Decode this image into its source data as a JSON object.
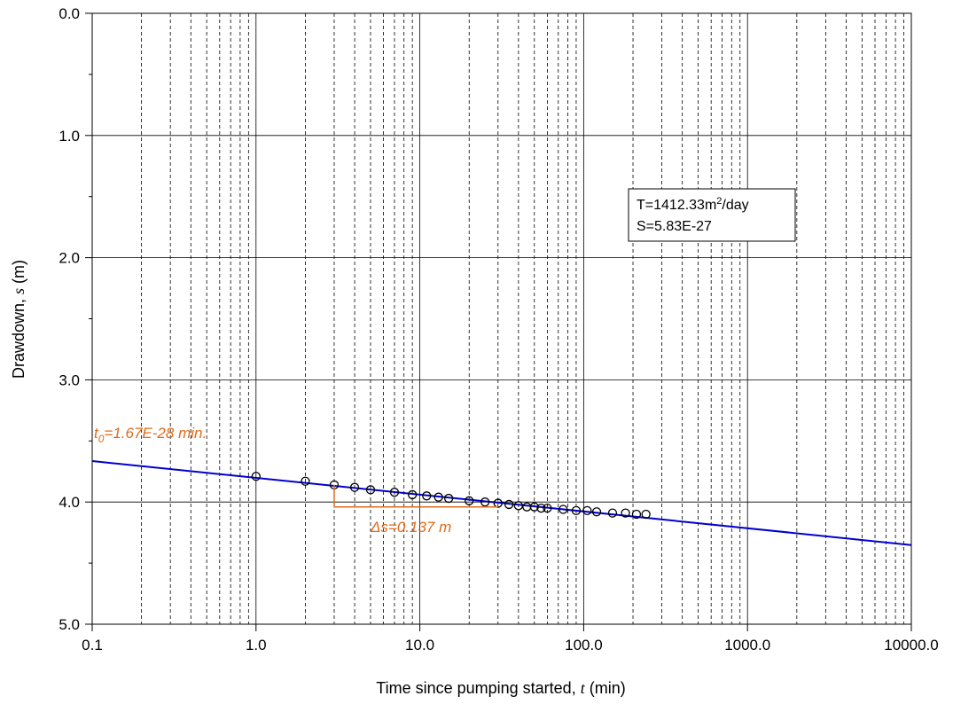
{
  "chart_data": {
    "type": "scatter",
    "xscale": "log",
    "xlim": [
      0.1,
      10000
    ],
    "ylim": [
      5.0,
      0.0
    ],
    "y_inverted": true,
    "grid": true,
    "xlabel": {
      "prefix": "Time since pumping started, ",
      "var": "t",
      "suffix": " (min)"
    },
    "ylabel": {
      "prefix": "Drawdown, ",
      "var": "s",
      "suffix": " (m)"
    },
    "x_ticks": [
      {
        "value": 0.1,
        "label": "0.1"
      },
      {
        "value": 1,
        "label": "1.0"
      },
      {
        "value": 10,
        "label": "10.0"
      },
      {
        "value": 100,
        "label": "100.0"
      },
      {
        "value": 1000,
        "label": "1000.0"
      },
      {
        "value": 10000,
        "label": "10000.0"
      }
    ],
    "y_ticks": [
      {
        "value": 0,
        "label": "0.0"
      },
      {
        "value": 1,
        "label": "1.0"
      },
      {
        "value": 2,
        "label": "2.0"
      },
      {
        "value": 3,
        "label": "3.0"
      },
      {
        "value": 4,
        "label": "4.0"
      },
      {
        "value": 5,
        "label": "5.0"
      }
    ],
    "y_minor_step": 0.5,
    "series": [
      {
        "kind": "points",
        "color": "#000000",
        "x": [
          1,
          2,
          3,
          4,
          5,
          7,
          9,
          11,
          13,
          15,
          20,
          25,
          30,
          35,
          40,
          45,
          50,
          55,
          60,
          75,
          90,
          105,
          120,
          150,
          180,
          210,
          240
        ],
        "y": [
          3.79,
          3.83,
          3.86,
          3.88,
          3.9,
          3.92,
          3.94,
          3.95,
          3.96,
          3.97,
          3.99,
          4.0,
          4.01,
          4.02,
          4.03,
          4.04,
          4.04,
          4.05,
          4.05,
          4.06,
          4.07,
          4.07,
          4.08,
          4.09,
          4.09,
          4.1,
          4.1
        ]
      },
      {
        "kind": "fit-line",
        "color": "#0000cc",
        "x": [
          0.1,
          10000
        ],
        "y": [
          3.665,
          4.352
        ]
      }
    ],
    "annotations": {
      "color": "#e06b1a",
      "t0": {
        "main": "t",
        "sub": "0",
        "rest": "=1.67E-28 min."
      },
      "delta_s": {
        "label": "Δs=0.137 m",
        "x_from": 3,
        "x_to": 30,
        "y_from": 3.86,
        "y_to": 4.04
      },
      "param_box": {
        "line1_prefix": "T=1412.33m",
        "line1_sup": "2",
        "line1_suffix": "/day",
        "line2": "S=5.83E-27"
      }
    }
  }
}
